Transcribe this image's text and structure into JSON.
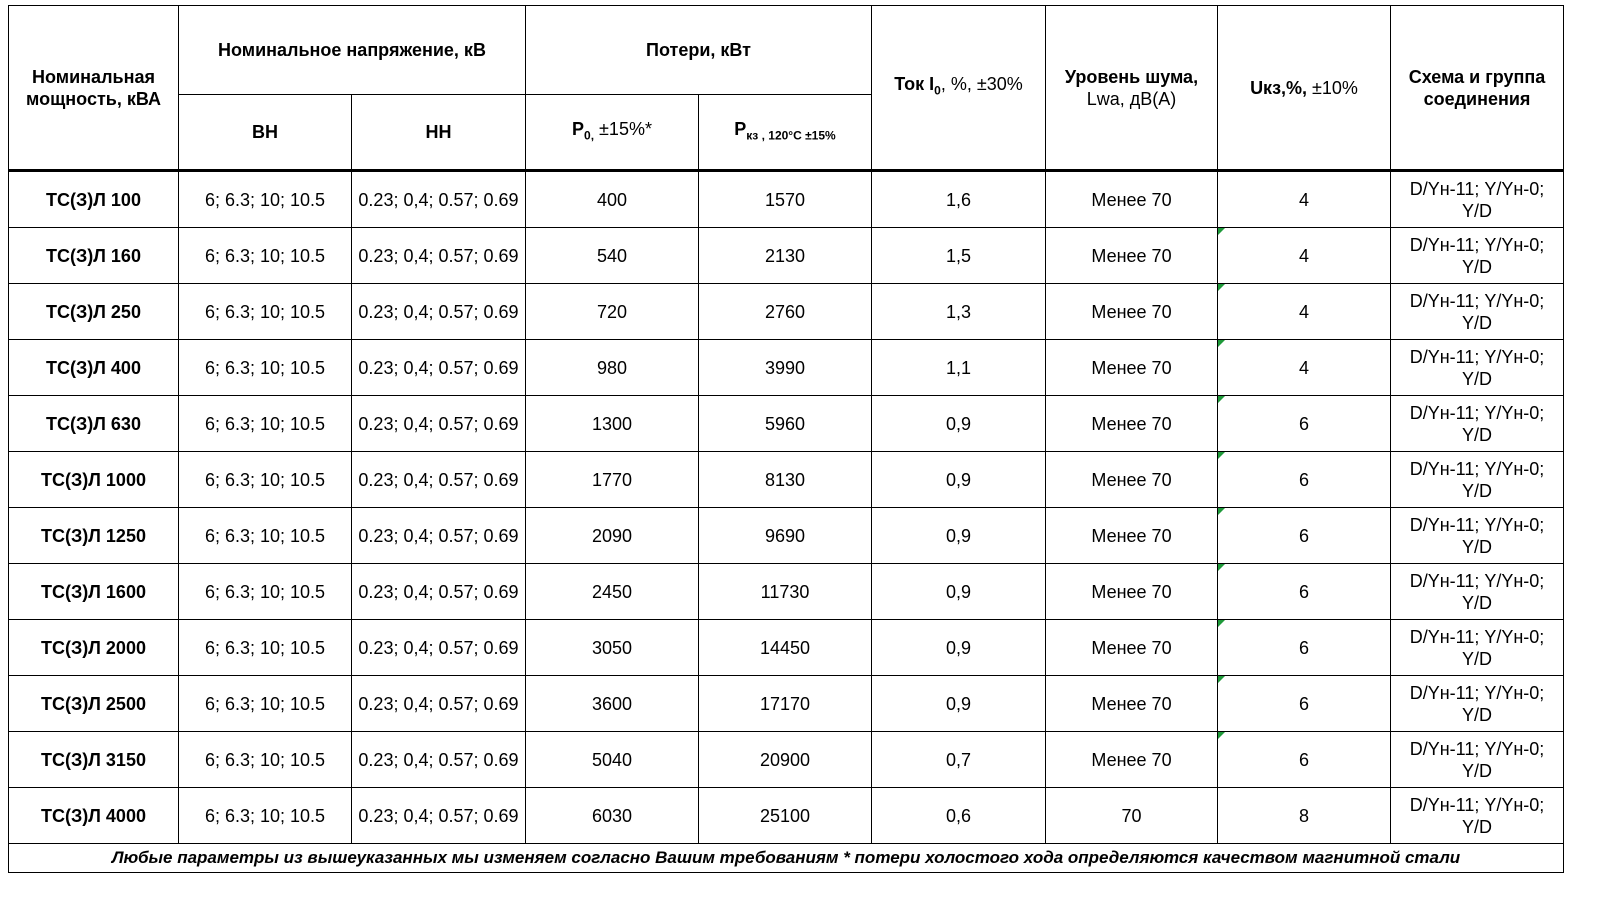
{
  "header": {
    "power": "Номинальная мощность, кВА",
    "voltage": "Номинальное напряжение, кВ",
    "losses": "Потери, кВт",
    "current_main": "Ток I",
    "current_sub": "0",
    "current_rest": ", %, ±30%",
    "noise_bold": "Уровень шума,",
    "noise_rest": "Lwa, дВ(А)",
    "ukz_bold": "Uкз,%,",
    "ukz_rest": " ±10%",
    "scheme": "Схема и группа соединения",
    "vn": "ВН",
    "nn": "НН",
    "p0_main": "P",
    "p0_sub": "0,",
    "p0_rest": "  ±15%*",
    "pkz_main": "P",
    "pkz_sub": "кз , 120°С  ±15%"
  },
  "rows": [
    {
      "model": "ТС(З)Л 100",
      "vn": "6; 6.3; 10; 10.5",
      "nn": "0.23; 0,4; 0.57; 0.69",
      "p0": "400",
      "pkz": "1570",
      "i0": "1,6",
      "noise": "Менее 70",
      "ukz": "4",
      "scheme": "D/Yн-11; Y/Yн-0; Y/D"
    },
    {
      "model": "ТС(З)Л 160",
      "vn": "6; 6.3; 10; 10.5",
      "nn": "0.23; 0,4; 0.57; 0.69",
      "p0": "540",
      "pkz": "2130",
      "i0": "1,5",
      "noise": "Менее 70",
      "ukz": "4",
      "scheme": "D/Yн-11; Y/Yн-0; Y/D"
    },
    {
      "model": "ТС(З)Л 250",
      "vn": "6; 6.3; 10; 10.5",
      "nn": "0.23; 0,4; 0.57; 0.69",
      "p0": "720",
      "pkz": "2760",
      "i0": "1,3",
      "noise": "Менее 70",
      "ukz": "4",
      "scheme": "D/Yн-11; Y/Yн-0; Y/D"
    },
    {
      "model": "ТС(З)Л 400",
      "vn": "6; 6.3; 10; 10.5",
      "nn": "0.23; 0,4; 0.57; 0.69",
      "p0": "980",
      "pkz": "3990",
      "i0": "1,1",
      "noise": "Менее 70",
      "ukz": "4",
      "scheme": "D/Yн-11; Y/Yн-0; Y/D"
    },
    {
      "model": "ТС(З)Л 630",
      "vn": "6; 6.3; 10; 10.5",
      "nn": "0.23; 0,4; 0.57; 0.69",
      "p0": "1300",
      "pkz": "5960",
      "i0": "0,9",
      "noise": "Менее 70",
      "ukz": "6",
      "scheme": "D/Yн-11; Y/Yн-0; Y/D"
    },
    {
      "model": "ТС(З)Л 1000",
      "vn": "6; 6.3; 10; 10.5",
      "nn": "0.23; 0,4; 0.57; 0.69",
      "p0": "1770",
      "pkz": "8130",
      "i0": "0,9",
      "noise": "Менее 70",
      "ukz": "6",
      "scheme": "D/Yн-11; Y/Yн-0; Y/D"
    },
    {
      "model": "ТС(З)Л 1250",
      "vn": "6; 6.3; 10; 10.5",
      "nn": "0.23; 0,4; 0.57; 0.69",
      "p0": "2090",
      "pkz": "9690",
      "i0": "0,9",
      "noise": "Менее 70",
      "ukz": "6",
      "scheme": "D/Yн-11; Y/Yн-0; Y/D"
    },
    {
      "model": "ТС(З)Л 1600",
      "vn": "6; 6.3; 10; 10.5",
      "nn": "0.23; 0,4; 0.57; 0.69",
      "p0": "2450",
      "pkz": "11730",
      "i0": "0,9",
      "noise": "Менее 70",
      "ukz": "6",
      "scheme": "D/Yн-11; Y/Yн-0; Y/D"
    },
    {
      "model": "ТС(З)Л 2000",
      "vn": "6; 6.3; 10; 10.5",
      "nn": "0.23; 0,4; 0.57; 0.69",
      "p0": "3050",
      "pkz": "14450",
      "i0": "0,9",
      "noise": "Менее 70",
      "ukz": "6",
      "scheme": "D/Yн-11; Y/Yн-0; Y/D"
    },
    {
      "model": "ТС(З)Л 2500",
      "vn": "6; 6.3; 10; 10.5",
      "nn": "0.23; 0,4; 0.57; 0.69",
      "p0": "3600",
      "pkz": "17170",
      "i0": "0,9",
      "noise": "Менее 70",
      "ukz": "6",
      "scheme": "D/Yн-11; Y/Yн-0; Y/D"
    },
    {
      "model": "ТС(З)Л 3150",
      "vn": "6; 6.3; 10; 10.5",
      "nn": "0.23; 0,4; 0.57; 0.69",
      "p0": "5040",
      "pkz": "20900",
      "i0": "0,7",
      "noise": "Менее 70",
      "ukz": "6",
      "scheme": "D/Yн-11; Y/Yн-0; Y/D"
    },
    {
      "model": "ТС(З)Л 4000",
      "vn": "6; 6.3; 10; 10.5",
      "nn": "0.23; 0,4; 0.57; 0.69",
      "p0": "6030",
      "pkz": "25100",
      "i0": "0,6",
      "noise": "70",
      "ukz": "8",
      "scheme": "D/Yн-11; Y/Yн-0; Y/D"
    }
  ],
  "footer": "Любые параметры из вышеуказанных мы изменяем согласно Вашим требованиям * потери холостого хода определяются качеством магнитной стали",
  "colors": {
    "comment_marker": "#1f9a3a"
  }
}
